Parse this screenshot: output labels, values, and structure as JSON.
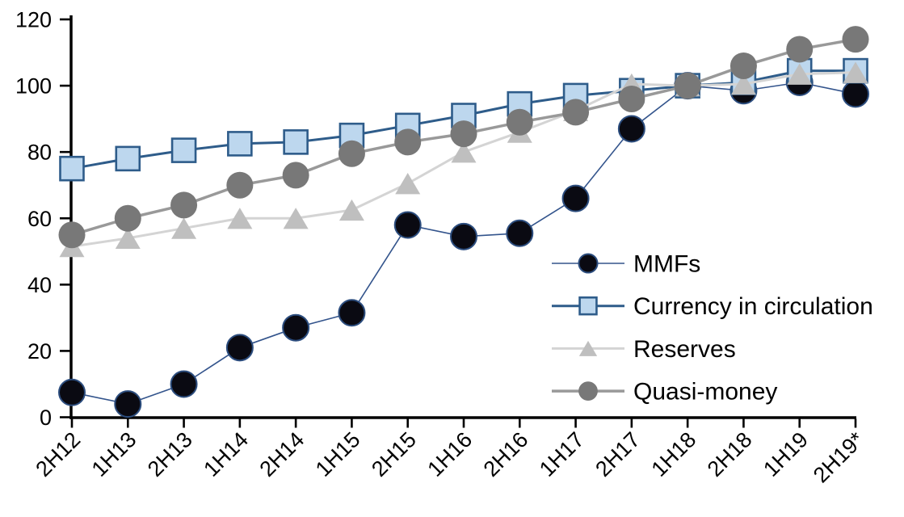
{
  "chart_data": {
    "type": "line",
    "title": "",
    "categories": [
      "2H12",
      "1H13",
      "2H13",
      "1H14",
      "2H14",
      "1H15",
      "2H15",
      "1H16",
      "2H16",
      "1H17",
      "2H17",
      "1H18",
      "2H18",
      "1H19",
      "2H19*"
    ],
    "series": [
      {
        "name": "MMFs",
        "marker": "circle",
        "marker_fill": "#0a0a12",
        "marker_stroke": "#2c4d7e",
        "marker_radius": 16,
        "line_color": "#33548c",
        "line_width": 1.6,
        "values": [
          7.5,
          4,
          10,
          21,
          27,
          31.5,
          58,
          54.5,
          55.5,
          66,
          87,
          100,
          98.5,
          101,
          97.5
        ]
      },
      {
        "name": "Currency in circulation",
        "marker": "square",
        "marker_fill": "#bdd7ee",
        "marker_stroke": "#2e5c8a",
        "marker_size": 29,
        "line_color": "#2e5c8a",
        "line_width": 3,
        "values": [
          75,
          78,
          80.5,
          82.5,
          83,
          85,
          88,
          91,
          94.5,
          97,
          98.5,
          100,
          101,
          104.5,
          104.5
        ]
      },
      {
        "name": "Reserves",
        "marker": "triangle",
        "marker_fill": "#bfbfbf",
        "marker_stroke": "none",
        "marker_size": 31,
        "line_color": "#d4d4d4",
        "line_width": 3,
        "values": [
          51.5,
          54,
          57,
          60,
          60,
          62.5,
          70.5,
          80,
          86,
          92.5,
          100.5,
          100,
          100.5,
          103.5,
          104
        ]
      },
      {
        "name": "Quasi-money",
        "marker": "circle",
        "marker_fill": "#787878",
        "marker_stroke": "none",
        "marker_radius": 16.5,
        "line_color": "#999999",
        "line_width": 3.5,
        "values": [
          55,
          60,
          64,
          70,
          73,
          79.5,
          83,
          85.5,
          89,
          92,
          96,
          100,
          106,
          111,
          114
        ]
      }
    ],
    "x_axis": {
      "tick_labels": [
        "2H12",
        "1H13",
        "2H13",
        "1H14",
        "2H14",
        "1H15",
        "2H15",
        "1H16",
        "2H16",
        "1H17",
        "2H17",
        "1H18",
        "2H18",
        "1H19",
        "2H19*"
      ],
      "label_rotation_deg": -45
    },
    "y_axis": {
      "min": 0,
      "max": 120,
      "step": 20,
      "tick_labels": [
        "0",
        "20",
        "40",
        "60",
        "80",
        "100",
        "120"
      ]
    },
    "legend": {
      "position": "inside-right",
      "entries": [
        "MMFs",
        "Currency in circulation",
        "Reserves",
        "Quasi-money"
      ]
    },
    "grid": false,
    "colors": {
      "axis": "#000000",
      "text": "#000000",
      "background": "#ffffff"
    }
  }
}
